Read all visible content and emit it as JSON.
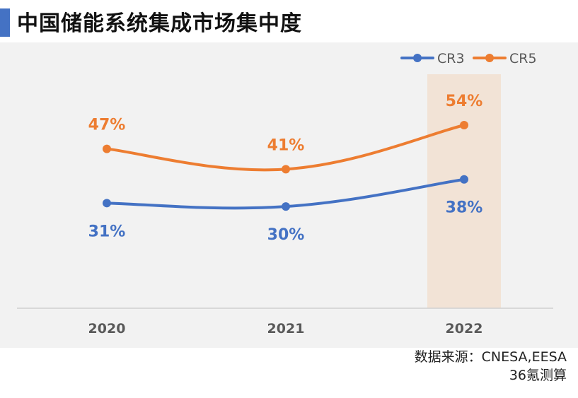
{
  "title": "中国储能系统集成市场集中度",
  "source_line1": "数据来源：CNESA,EESA",
  "source_line2": "36氪测算",
  "colors": {
    "cr3": "#4472c4",
    "cr5": "#ed7d31",
    "highlight": "#f2e3d6",
    "title_bar": "#4472c4"
  },
  "chart_data": {
    "type": "line",
    "categories": [
      "2020",
      "2021",
      "2022"
    ],
    "series": [
      {
        "name": "CR3",
        "values": [
          31,
          30,
          38
        ],
        "labels": [
          "31%",
          "30%",
          "38%"
        ]
      },
      {
        "name": "CR5",
        "values": [
          47,
          41,
          54
        ],
        "labels": [
          "47%",
          "41%",
          "54%"
        ]
      }
    ],
    "highlight_category": "2022",
    "legend_position": "top-right",
    "grid": false
  }
}
